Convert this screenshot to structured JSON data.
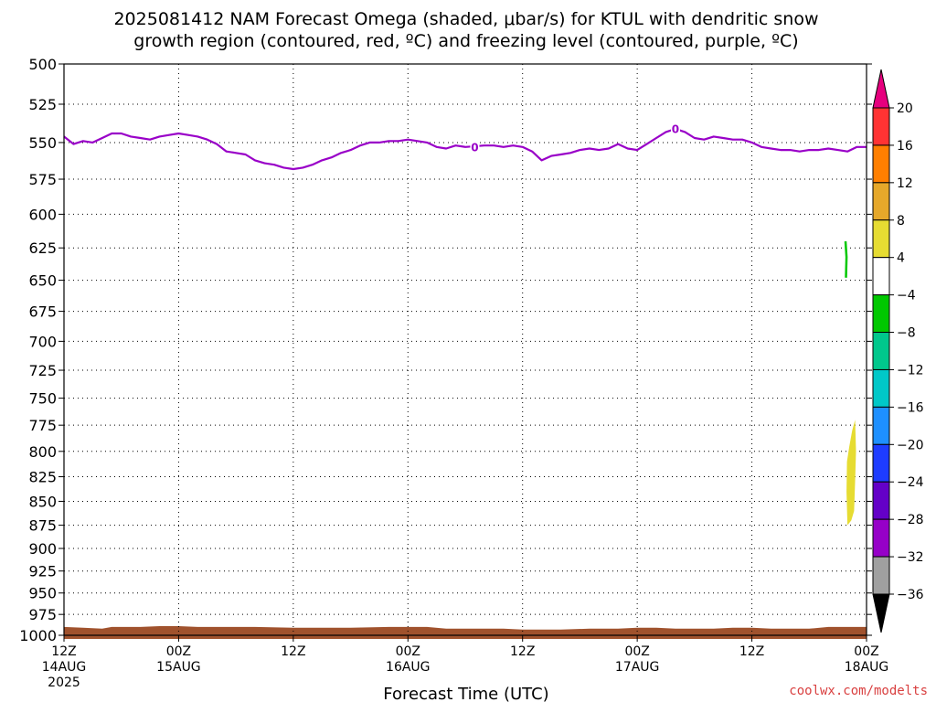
{
  "chart_data": {
    "type": "heatmap",
    "title_line1": "2025081412 NAM Forecast Omega (shaded, μbar/s) for KTUL with dendritic snow",
    "title_line2": "growth region (contoured, red, ºC) and freezing level (contoured, purple, ºC)",
    "xlabel": "Forecast Time (UTC)",
    "credit": "coolwx.com/modelts",
    "x_ticks": [
      {
        "hour": 0,
        "line1": "12Z",
        "line2": "14AUG",
        "line3": "2025"
      },
      {
        "hour": 12,
        "line1": "00Z",
        "line2": "15AUG",
        "line3": ""
      },
      {
        "hour": 24,
        "line1": "12Z",
        "line2": "",
        "line3": ""
      },
      {
        "hour": 36,
        "line1": "00Z",
        "line2": "16AUG",
        "line3": ""
      },
      {
        "hour": 48,
        "line1": "12Z",
        "line2": "",
        "line3": ""
      },
      {
        "hour": 60,
        "line1": "00Z",
        "line2": "17AUG",
        "line3": ""
      },
      {
        "hour": 72,
        "line1": "12Z",
        "line2": "",
        "line3": ""
      },
      {
        "hour": 84,
        "line1": "00Z",
        "line2": "18AUG",
        "line3": ""
      }
    ],
    "x_range_hours": [
      0,
      84
    ],
    "y_ticks": [
      500,
      525,
      550,
      575,
      600,
      625,
      650,
      675,
      700,
      725,
      750,
      775,
      800,
      825,
      850,
      875,
      900,
      925,
      950,
      975,
      1000
    ],
    "y_range_mb": [
      500,
      1000
    ],
    "y_scale": "log-pressure",
    "grid": "dotted",
    "freezing_level": {
      "color": "#9900c8",
      "label": "0",
      "label_points": [
        [
          43,
          553
        ],
        [
          64,
          541
        ]
      ],
      "points": [
        [
          0,
          546
        ],
        [
          1,
          551
        ],
        [
          2,
          549
        ],
        [
          3,
          550
        ],
        [
          4,
          547
        ],
        [
          5,
          544
        ],
        [
          6,
          544
        ],
        [
          7,
          546
        ],
        [
          8,
          547
        ],
        [
          9,
          548
        ],
        [
          10,
          546
        ],
        [
          11,
          545
        ],
        [
          12,
          544
        ],
        [
          13,
          545
        ],
        [
          14,
          546
        ],
        [
          15,
          548
        ],
        [
          16,
          551
        ],
        [
          17,
          556
        ],
        [
          18,
          557
        ],
        [
          19,
          558
        ],
        [
          20,
          562
        ],
        [
          21,
          564
        ],
        [
          22,
          565
        ],
        [
          23,
          567
        ],
        [
          24,
          568
        ],
        [
          25,
          567
        ],
        [
          26,
          565
        ],
        [
          27,
          562
        ],
        [
          28,
          560
        ],
        [
          29,
          557
        ],
        [
          30,
          555
        ],
        [
          31,
          552
        ],
        [
          32,
          550
        ],
        [
          33,
          550
        ],
        [
          34,
          549
        ],
        [
          35,
          549
        ],
        [
          36,
          548
        ],
        [
          37,
          549
        ],
        [
          38,
          550
        ],
        [
          39,
          553
        ],
        [
          40,
          554
        ],
        [
          41,
          552
        ],
        [
          42,
          553
        ],
        [
          44,
          552
        ],
        [
          45,
          552
        ],
        [
          46,
          553
        ],
        [
          47,
          552
        ],
        [
          48,
          553
        ],
        [
          49,
          556
        ],
        [
          50,
          562
        ],
        [
          51,
          559
        ],
        [
          52,
          558
        ],
        [
          53,
          557
        ],
        [
          54,
          555
        ],
        [
          55,
          554
        ],
        [
          56,
          555
        ],
        [
          57,
          554
        ],
        [
          58,
          551
        ],
        [
          59,
          554
        ],
        [
          60,
          555
        ],
        [
          61,
          551
        ],
        [
          62,
          547
        ],
        [
          63,
          543
        ],
        [
          64,
          541
        ],
        [
          65,
          543
        ],
        [
          66,
          547
        ],
        [
          67,
          548
        ],
        [
          68,
          546
        ],
        [
          69,
          547
        ],
        [
          70,
          548
        ],
        [
          71,
          548
        ],
        [
          72,
          550
        ],
        [
          73,
          553
        ],
        [
          74,
          554
        ],
        [
          75,
          555
        ],
        [
          76,
          555
        ],
        [
          77,
          556
        ],
        [
          78,
          555
        ],
        [
          79,
          555
        ],
        [
          80,
          554
        ],
        [
          81,
          555
        ],
        [
          82,
          556
        ],
        [
          83,
          553
        ],
        [
          84,
          553
        ]
      ]
    },
    "dendritic_contour": {
      "color": "#00c800",
      "points": [
        [
          81.8,
          620
        ],
        [
          81.9,
          632
        ],
        [
          81.85,
          648
        ]
      ]
    },
    "omega_regions": [
      {
        "value_range": [
          4,
          8
        ],
        "color": "#e6dc32",
        "polygon": [
          [
            82.0,
            875
          ],
          [
            81.9,
            840
          ],
          [
            81.95,
            810
          ],
          [
            82.2,
            795
          ],
          [
            82.5,
            780
          ],
          [
            82.8,
            770
          ],
          [
            82.9,
            800
          ],
          [
            82.8,
            830
          ],
          [
            82.7,
            860
          ],
          [
            82.4,
            870
          ]
        ]
      }
    ],
    "terrain": {
      "color": "#a0522d",
      "surface_pressure": [
        [
          0,
          990
        ],
        [
          2,
          991
        ],
        [
          4,
          992
        ],
        [
          5,
          990
        ],
        [
          8,
          990
        ],
        [
          10,
          989
        ],
        [
          12,
          989
        ],
        [
          14,
          990
        ],
        [
          20,
          990
        ],
        [
          24,
          991
        ],
        [
          30,
          991
        ],
        [
          34,
          990
        ],
        [
          38,
          990
        ],
        [
          40,
          992
        ],
        [
          46,
          992
        ],
        [
          48,
          993
        ],
        [
          52,
          993
        ],
        [
          55,
          992
        ],
        [
          58,
          992
        ],
        [
          60,
          991
        ],
        [
          62,
          991
        ],
        [
          64,
          992
        ],
        [
          68,
          992
        ],
        [
          70,
          991
        ],
        [
          72,
          991
        ],
        [
          74,
          992
        ],
        [
          78,
          992
        ],
        [
          80,
          990
        ],
        [
          84,
          990
        ]
      ]
    },
    "colorbar": {
      "ticks": [
        "20",
        "16",
        "12",
        "8",
        "4",
        "−4",
        "−8",
        "−12",
        "−16",
        "−20",
        "−24",
        "−28",
        "−32",
        "−36"
      ],
      "colors": [
        "#ff3333",
        "#ff7f00",
        "#e6a82a",
        "#e6dc32",
        "#ffffff",
        "#00c800",
        "#00c88c",
        "#00c8c8",
        "#1e90ff",
        "#1e3cff",
        "#6400c8",
        "#9600c8",
        "#a0a0a0"
      ],
      "top_arrow_color": "#e6007e",
      "bottom_arrow_color": "#000000"
    }
  }
}
